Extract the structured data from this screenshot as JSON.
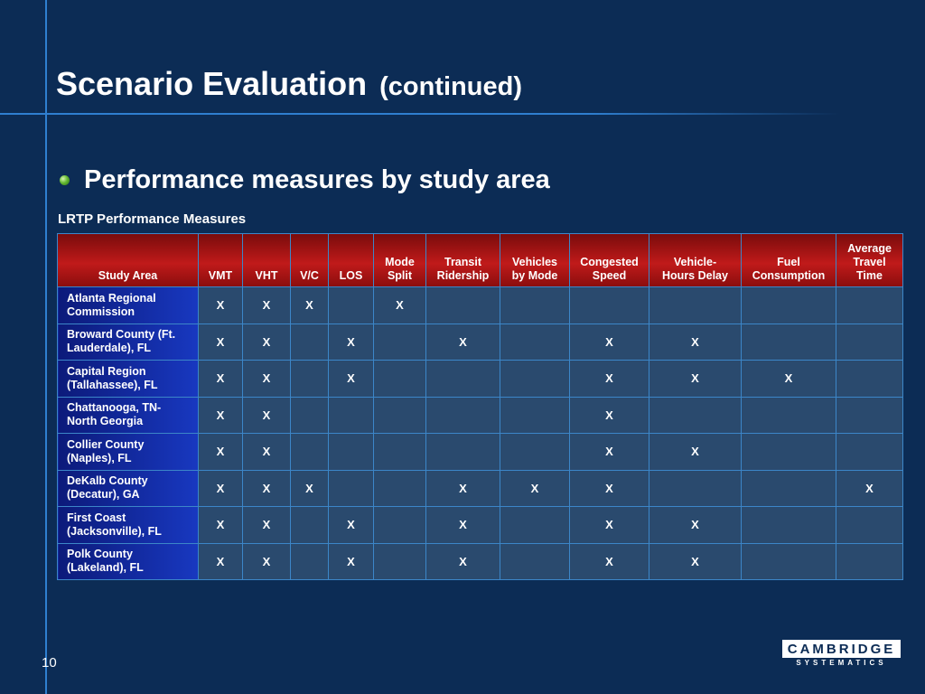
{
  "slide": {
    "title_main": "Scenario Evaluation",
    "title_sub": "(continued)",
    "bullet": "Performance measures by study area",
    "table_title": "LRTP Performance Measures",
    "page_number": "10"
  },
  "logo": {
    "line1": "CAMBRIDGE",
    "line2": "SYSTEMATICS"
  },
  "columns": [
    "Study Area",
    "VMT",
    "VHT",
    "V/C",
    "LOS",
    "Mode\nSplit",
    "Transit\nRidership",
    "Vehicles\nby Mode",
    "Congested\nSpeed",
    "Vehicle-\nHours Delay",
    "Fuel\nConsumption",
    "Average\nTravel\nTime"
  ],
  "rows": [
    {
      "area": "Atlanta Regional\nCommission",
      "marks": [
        "X",
        "X",
        "X",
        "",
        "X",
        "",
        "",
        "",
        "",
        "",
        ""
      ]
    },
    {
      "area": "Broward County (Ft.\nLauderdale), FL",
      "marks": [
        "X",
        "X",
        "",
        "X",
        "",
        "X",
        "",
        "X",
        "X",
        "",
        ""
      ]
    },
    {
      "area": "Capital Region\n(Tallahassee), FL",
      "marks": [
        "X",
        "X",
        "",
        "X",
        "",
        "",
        "",
        "X",
        "X",
        "X",
        ""
      ]
    },
    {
      "area": "Chattanooga, TN-\nNorth Georgia",
      "marks": [
        "X",
        "X",
        "",
        "",
        "",
        "",
        "",
        "X",
        "",
        "",
        ""
      ]
    },
    {
      "area": "Collier County\n(Naples), FL",
      "marks": [
        "X",
        "X",
        "",
        "",
        "",
        "",
        "",
        "X",
        "X",
        "",
        ""
      ]
    },
    {
      "area": "DeKalb County\n(Decatur), GA",
      "marks": [
        "X",
        "X",
        "X",
        "",
        "",
        "X",
        "X",
        "X",
        "",
        "",
        "X"
      ]
    },
    {
      "area": "First Coast\n(Jacksonville), FL",
      "marks": [
        "X",
        "X",
        "",
        "X",
        "",
        "X",
        "",
        "X",
        "X",
        "",
        ""
      ]
    },
    {
      "area": "Polk County\n(Lakeland), FL",
      "marks": [
        "X",
        "X",
        "",
        "X",
        "",
        "X",
        "",
        "X",
        "X",
        "",
        ""
      ]
    }
  ]
}
